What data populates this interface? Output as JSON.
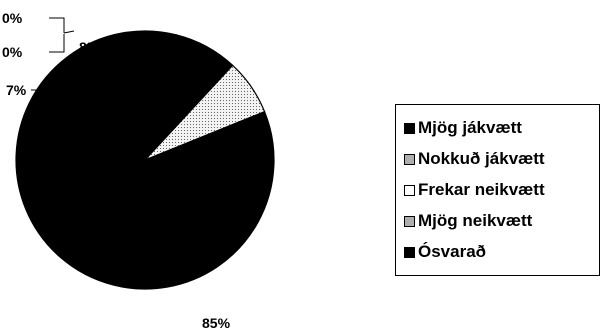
{
  "chart_data": {
    "type": "pie",
    "categories": [
      "Mjög jákvætt",
      "Nokkuð jákvætt",
      "Frekar neikvætt",
      "Mjög neikvætt",
      "Ósvarað"
    ],
    "values": [
      8,
      7,
      0,
      0,
      85
    ],
    "data_labels": [
      "8%",
      "7%",
      "0%",
      "0%",
      "85%"
    ],
    "fills": [
      "#000000",
      "dotted",
      "#ffffff",
      "dotted",
      "#000000"
    ],
    "legend": {
      "placement": "right",
      "entries": [
        "Mjög jákvætt",
        "Nokkuð jákvætt",
        "Frekar neikvætt",
        "Mjög neikvætt",
        "Ósvarað"
      ],
      "swatches": [
        "#000000",
        "dotted",
        "#ffffff",
        "dotted",
        "#000000"
      ]
    }
  }
}
